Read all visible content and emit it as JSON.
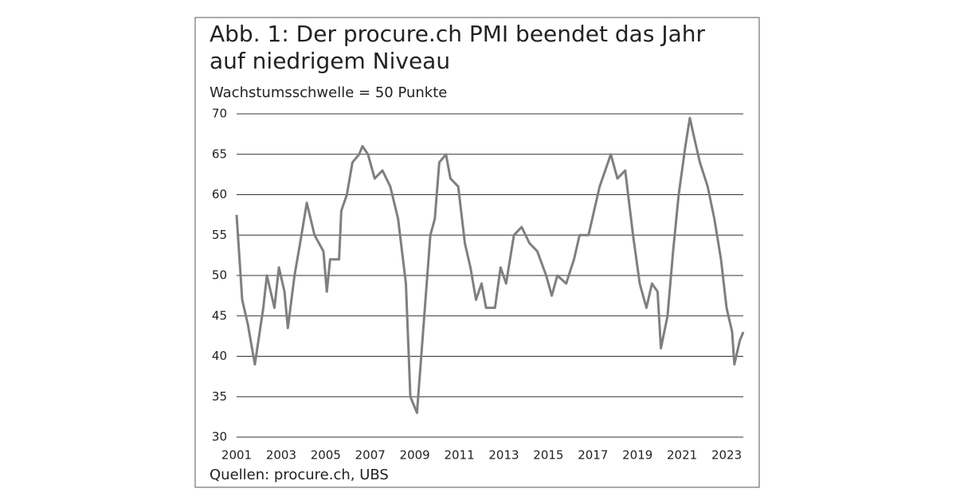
{
  "chart_data": {
    "type": "line",
    "title": "Abb. 1: Der procure.ch PMI beendet das Jahr auf niedrigem Niveau",
    "subtitle": "Wachstumsschwelle = 50 Punkte",
    "source": "Quellen: procure.ch, UBS",
    "x": [
      2001.0,
      2001.25,
      2001.5,
      2001.82,
      2002.2,
      2002.36,
      2002.7,
      2002.9,
      2003.15,
      2003.3,
      2003.6,
      2003.85,
      2004.15,
      2004.5,
      2004.9,
      2005.05,
      2005.2,
      2005.6,
      2005.7,
      2005.95,
      2006.2,
      2006.5,
      2006.65,
      2006.9,
      2007.2,
      2007.55,
      2007.9,
      2008.25,
      2008.6,
      2008.8,
      2009.1,
      2009.4,
      2009.7,
      2009.9,
      2010.1,
      2010.4,
      2010.6,
      2010.95,
      2011.25,
      2011.5,
      2011.75,
      2012.0,
      2012.2,
      2012.6,
      2012.85,
      2013.1,
      2013.45,
      2013.8,
      2014.15,
      2014.5,
      2014.9,
      2015.15,
      2015.4,
      2015.8,
      2016.15,
      2016.4,
      2016.8,
      2017.05,
      2017.3,
      2017.55,
      2017.8,
      2018.1,
      2018.45,
      2018.8,
      2019.1,
      2019.4,
      2019.65,
      2019.9,
      2020.05,
      2020.35,
      2020.6,
      2020.85,
      2021.15,
      2021.35,
      2021.55,
      2021.8,
      2022.15,
      2022.45,
      2022.75,
      2023.0,
      2023.25,
      2023.35,
      2023.6,
      2023.75
    ],
    "series": [
      {
        "name": "procure.ch PMI",
        "color": "#7f7f7f",
        "values": [
          57.5,
          47,
          44,
          39,
          46,
          50,
          46,
          51,
          48,
          43.5,
          50,
          54,
          59,
          55,
          53,
          48,
          52,
          52,
          58,
          60,
          64,
          65,
          66,
          65,
          62,
          63,
          61,
          57,
          49,
          35,
          33,
          44,
          55,
          57,
          64,
          65,
          62,
          61,
          54,
          51,
          47,
          49,
          46,
          46,
          51,
          49,
          55,
          56,
          54,
          53,
          50,
          47.5,
          50,
          49,
          52,
          55,
          55,
          58,
          61,
          63,
          65,
          62,
          63,
          55,
          49,
          46,
          49,
          48,
          41,
          45,
          53,
          60,
          66,
          69.5,
          67,
          64,
          61,
          57,
          52,
          46,
          43,
          39,
          42,
          43
        ]
      }
    ],
    "xlim": [
      2001,
      2023.75
    ],
    "xticks": [
      2001,
      2003,
      2005,
      2007,
      2009,
      2011,
      2013,
      2015,
      2017,
      2019,
      2021,
      2023
    ],
    "ylim": [
      30,
      70
    ],
    "yticks": [
      30,
      35,
      40,
      45,
      50,
      55,
      60,
      65,
      70
    ],
    "grid": true
  }
}
